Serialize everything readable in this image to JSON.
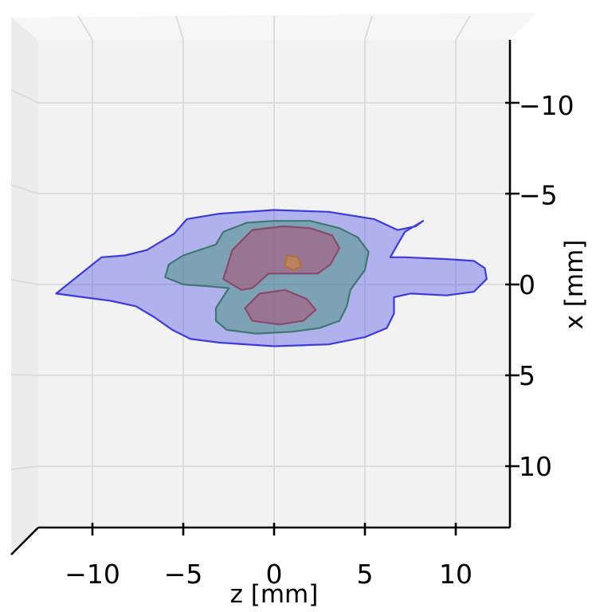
{
  "chart_data": {
    "type": "3d-surface-projection",
    "title": "",
    "xlabel": "z [mm]",
    "ylabel": "x [mm]",
    "xlim": [
      -13,
      13
    ],
    "ylim": [
      -13,
      13
    ],
    "x_ticks": [
      {
        "value": -10,
        "label": "−10"
      },
      {
        "value": -5,
        "label": "−5"
      },
      {
        "value": 0,
        "label": "0"
      },
      {
        "value": 5,
        "label": "5"
      },
      {
        "value": 10,
        "label": "10"
      }
    ],
    "y_ticks": [
      {
        "value": -10,
        "label": "−10"
      },
      {
        "value": -5,
        "label": "−5"
      },
      {
        "value": 0,
        "label": "0"
      },
      {
        "value": 5,
        "label": "5"
      },
      {
        "value": 10,
        "label": "10"
      }
    ],
    "grid": true,
    "surfaces": [
      {
        "color": "#3a3ae6",
        "edge": "#2222dd",
        "opacity": 0.35,
        "points": [
          [
            -12.0,
            0.5
          ],
          [
            -10.5,
            -0.7
          ],
          [
            -9.5,
            -1.5
          ],
          [
            -8.2,
            -1.6
          ],
          [
            -7.0,
            -1.9
          ],
          [
            -5.5,
            -2.8
          ],
          [
            -4.8,
            -3.6
          ],
          [
            -3.0,
            -3.9
          ],
          [
            0.0,
            -4.1
          ],
          [
            3.0,
            -4.0
          ],
          [
            5.5,
            -3.6
          ],
          [
            6.8,
            -3.0
          ],
          [
            7.8,
            -3.2
          ],
          [
            8.2,
            -3.5
          ],
          [
            7.2,
            -2.9
          ],
          [
            6.8,
            -2.2
          ],
          [
            6.4,
            -1.5
          ],
          [
            7.2,
            -1.5
          ],
          [
            9.5,
            -1.4
          ],
          [
            11.0,
            -1.3
          ],
          [
            11.6,
            -0.9
          ],
          [
            11.7,
            -0.3
          ],
          [
            11.0,
            0.4
          ],
          [
            9.5,
            0.6
          ],
          [
            7.5,
            0.5
          ],
          [
            6.6,
            0.7
          ],
          [
            6.6,
            1.6
          ],
          [
            6.2,
            2.4
          ],
          [
            5.0,
            2.9
          ],
          [
            3.0,
            3.3
          ],
          [
            0.0,
            3.4
          ],
          [
            -3.0,
            3.2
          ],
          [
            -4.6,
            3.0
          ],
          [
            -5.6,
            2.5
          ],
          [
            -6.6,
            1.8
          ],
          [
            -7.6,
            1.2
          ],
          [
            -9.0,
            0.9
          ],
          [
            -10.5,
            0.7
          ]
        ]
      },
      {
        "color": "#3f9070",
        "edge": "#2f7060",
        "opacity": 0.45,
        "points": [
          [
            -6.0,
            -0.4
          ],
          [
            -5.8,
            -1.1
          ],
          [
            -5.0,
            -1.6
          ],
          [
            -3.2,
            -2.2
          ],
          [
            -2.8,
            -2.9
          ],
          [
            -1.5,
            -3.4
          ],
          [
            0.0,
            -3.5
          ],
          [
            2.0,
            -3.5
          ],
          [
            3.6,
            -3.1
          ],
          [
            4.6,
            -2.6
          ],
          [
            5.2,
            -1.8
          ],
          [
            5.0,
            -0.8
          ],
          [
            4.2,
            0.3
          ],
          [
            4.0,
            1.2
          ],
          [
            3.6,
            2.0
          ],
          [
            2.5,
            2.4
          ],
          [
            1.0,
            2.6
          ],
          [
            -1.0,
            2.7
          ],
          [
            -2.6,
            2.5
          ],
          [
            -3.2,
            2.0
          ],
          [
            -3.2,
            1.3
          ],
          [
            -2.5,
            0.2
          ],
          [
            -3.6,
            0.1
          ],
          [
            -5.0,
            0.0
          ]
        ]
      },
      {
        "color": "#b05078",
        "edge": "#8a4060",
        "opacity": 0.55,
        "points": [
          [
            -2.8,
            -0.3
          ],
          [
            -2.3,
            -1.9
          ],
          [
            -1.2,
            -3.0
          ],
          [
            0.5,
            -3.2
          ],
          [
            2.0,
            -3.1
          ],
          [
            3.2,
            -2.7
          ],
          [
            3.6,
            -2.0
          ],
          [
            3.1,
            -1.1
          ],
          [
            2.4,
            -0.6
          ],
          [
            0.8,
            -0.6
          ],
          [
            -0.3,
            -0.6
          ],
          [
            -1.2,
            0.2
          ],
          [
            -1.8,
            0.3
          ]
        ]
      },
      {
        "color": "#b05078",
        "edge": "#8a4060",
        "opacity": 0.55,
        "points": [
          [
            -1.6,
            1.3
          ],
          [
            -0.8,
            0.5
          ],
          [
            0.6,
            0.3
          ],
          [
            1.8,
            0.8
          ],
          [
            2.3,
            1.4
          ],
          [
            1.6,
            2.0
          ],
          [
            0.3,
            2.2
          ],
          [
            -1.2,
            2.0
          ]
        ]
      },
      {
        "color": "#d08c40",
        "edge": "#b07030",
        "opacity": 0.6,
        "points": [
          [
            0.7,
            -1.6
          ],
          [
            1.3,
            -1.5
          ],
          [
            1.5,
            -1.0
          ],
          [
            1.1,
            -0.8
          ],
          [
            0.6,
            -1.0
          ]
        ]
      }
    ]
  }
}
